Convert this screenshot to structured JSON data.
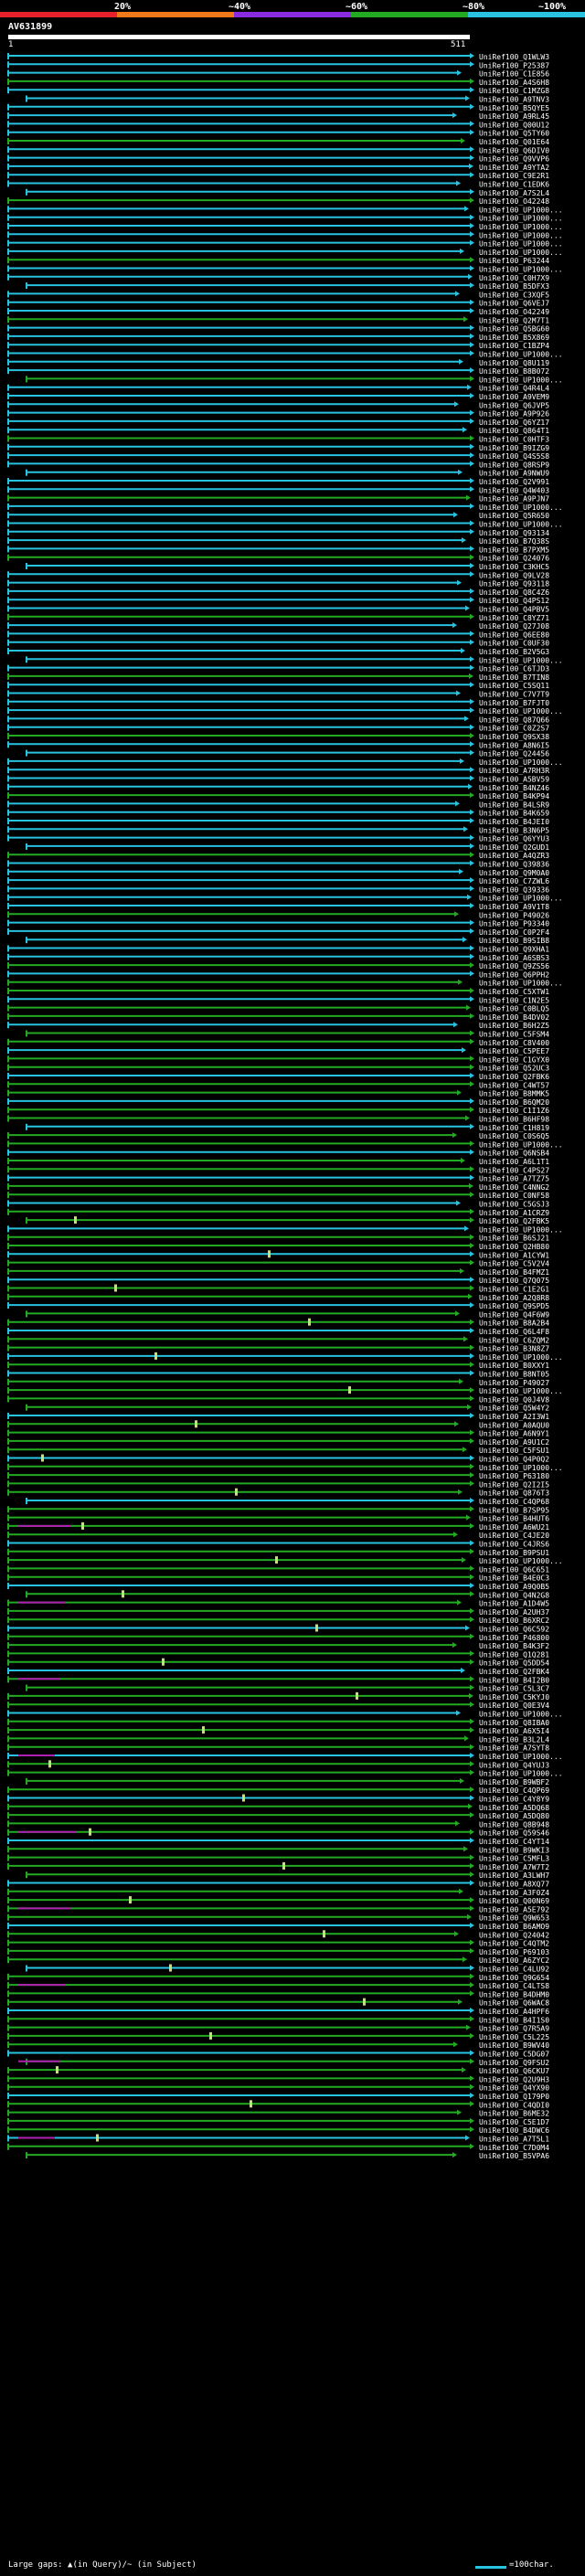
{
  "scale": {
    "labels": [
      "20%",
      "~40%",
      "~60%",
      "~80%",
      "~100%"
    ],
    "colors": [
      "#e8202a",
      "#f07a1a",
      "#8a2be2",
      "#22aa22",
      "#27c3e0"
    ]
  },
  "query": {
    "name": "AV631899",
    "start": "1",
    "end": "511"
  },
  "hits": [
    "UniRef100_Q1WLW3",
    "UniRef100_P25387",
    "UniRef100_C1E856",
    "UniRef100_A4S6H8",
    "UniRef100_C1MZG8",
    "UniRef100_A9TNV3",
    "UniRef100_B5QYE5",
    "UniRef100_A9RL45",
    "UniRef100_Q00U12",
    "UniRef100_Q5TY60",
    "UniRef100_Q01E64",
    "UniRef100_Q6DIV0",
    "UniRef100_Q9VVP6",
    "UniRef100_A9YTA2",
    "UniRef100_C9E2R1",
    "UniRef100_C1EDK6",
    "UniRef100_A7S2L4",
    "UniRef100_O42248",
    "UniRef100_UP1000...",
    "UniRef100_UP1000...",
    "UniRef100_UP1000...",
    "UniRef100_UP1000...",
    "UniRef100_UP1000...",
    "UniRef100_UP1000...",
    "UniRef100_P63244",
    "UniRef100_UP1000...",
    "UniRef100_C0H7X9",
    "UniRef100_B5DFX3",
    "UniRef100_C3XQF5",
    "UniRef100_Q6VEJ7",
    "UniRef100_O42249",
    "UniRef100_Q2M7T1",
    "UniRef100_Q5BG60",
    "UniRef100_B5X869",
    "UniRef100_C1BZP4",
    "UniRef100_UP1000...",
    "UniRef100_Q8U119",
    "UniRef100_B8B072",
    "UniRef100_UP1000...",
    "UniRef100_Q4R4L4",
    "UniRef100_A9VEM9",
    "UniRef100_Q6JVP5",
    "UniRef100_A9P926",
    "UniRef100_Q6YZ17",
    "UniRef100_Q864T1",
    "UniRef100_C0HTF3",
    "UniRef100_B9IZG9",
    "UniRef100_Q4S5S8",
    "UniRef100_Q8RSP9",
    "UniRef100_A9NWU9",
    "UniRef100_Q2V991",
    "UniRef100_Q4W403",
    "UniRef100_A9PJN7",
    "UniRef100_UP1000...",
    "UniRef100_Q5R650",
    "UniRef100_UP1000...",
    "UniRef100_Q93134",
    "UniRef100_B7Q38S",
    "UniRef100_B7PXM5",
    "UniRef100_Q24076",
    "UniRef100_C3KHC5",
    "UniRef100_Q9LV28",
    "UniRef100_Q93118",
    "UniRef100_Q8C4Z6",
    "UniRef100_Q4PS12",
    "UniRef100_Q4PBV5",
    "UniRef100_C8YZ71",
    "UniRef100_Q27J08",
    "UniRef100_Q6EE80",
    "UniRef100_C0UF30",
    "UniRef100_B2V5G3",
    "UniRef100_UP1000...",
    "UniRef100_C6TJD3",
    "UniRef100_B7TIN8",
    "UniRef100_C5SQ11",
    "UniRef100_C7V7T9",
    "UniRef100_B7FJT0",
    "UniRef100_UP1000...",
    "UniRef100_Q87Q66",
    "UniRef100_C0Z2S7",
    "UniRef100_Q9SX38",
    "UniRef100_A8N6I5",
    "UniRef100_Q24456",
    "UniRef100_UP1000...",
    "UniRef100_A7RH3R",
    "UniRef100_A5BV59",
    "UniRef100_B4NZ46",
    "UniRef100_B4KP94",
    "UniRef100_B4LSR9",
    "UniRef100_B4K659",
    "UniRef100_B4JEI0",
    "UniRef100_B3N6P5",
    "UniRef100_Q6YYU3",
    "UniRef100_Q2GUD1",
    "UniRef100_A4QZR3",
    "UniRef100_Q39836",
    "UniRef100_Q9M0A0",
    "UniRef100_C7ZWL6",
    "UniRef100_Q39336",
    "UniRef100_UP1000...",
    "UniRef100_A9V1T8",
    "UniRef100_P49026",
    "UniRef100_P93340",
    "UniRef100_C0P2F4",
    "UniRef100_B9SIB8",
    "UniRef100_Q9XHA1",
    "UniRef100_A6SBS3",
    "UniRef100_Q9ZS56",
    "UniRef100_Q6PPH2",
    "UniRef100_UP1000...",
    "UniRef100_C5XTW1",
    "UniRef100_C1N2E5",
    "UniRef100_C0BLQ5",
    "UniRef100_B4DV02",
    "UniRef100_B6H2Z5",
    "UniRef100_C5FSM4",
    "UniRef100_C8V400",
    "UniRef100_C5PEE7",
    "UniRef100_C1GYX0",
    "UniRef100_Q52UC3",
    "UniRef100_Q2FBK6",
    "UniRef100_C4WT57",
    "UniRef100_B8MMK5",
    "UniRef100_B6QM20",
    "UniRef100_C1I1Z6",
    "UniRef100_B6HF98",
    "UniRef100_C1H819",
    "UniRef100_C0S6Q5",
    "UniRef100_UP1000...",
    "UniRef100_Q6NSB4",
    "UniRef100_A6L1T1",
    "UniRef100_C4PS27",
    "UniRef100_A7TZ75",
    "UniRef100_C4NNG2",
    "UniRef100_C0NF58",
    "UniRef100_C5GSJ3",
    "UniRef100_A1CRZ9",
    "UniRef100_Q2FBK5",
    "UniRef100_UP1000...",
    "UniRef100_B6SJ21",
    "UniRef100_Q2HB80",
    "UniRef100_A1CYW1",
    "UniRef100_C5V2V4",
    "UniRef100_B4FMZ1",
    "UniRef100_Q7Q075",
    "UniRef100_C1E2G1",
    "UniRef100_A2Q8R8",
    "UniRef100_Q9SPD5",
    "UniRef100_Q4F6W9",
    "UniRef100_B8A2B4",
    "UniRef100_Q6L4F8",
    "UniRef100_C6ZQM2",
    "UniRef100_B3N8Z7",
    "UniRef100_UP1000...",
    "UniRef100_B0XXY1",
    "UniRef100_B8NT05",
    "UniRef100_P49027",
    "UniRef100_UP1000...",
    "UniRef100_Q0J4V8",
    "UniRef100_Q5W4Y2",
    "UniRef100_A2I3W1",
    "UniRef100_A0AQU0",
    "UniRef100_A6N9Y1",
    "UniRef100_A9U1C2",
    "UniRef100_C5FSU1",
    "UniRef100_Q4P0Q2",
    "UniRef100_UP1000...",
    "UniRef100_P63180",
    "UniRef100_Q2I2I5",
    "UniRef100_Q876T3",
    "UniRef100_C4QP68",
    "UniRef100_B7SP95",
    "UniRef100_B4HUT6",
    "UniRef100_A6WU21",
    "UniRef100_C4JE20",
    "UniRef100_C4JRS6",
    "UniRef100_B9PSU1",
    "UniRef100_UP1000...",
    "UniRef100_Q6C651",
    "UniRef100_B4E0C3",
    "UniRef100_A9Q0B5",
    "UniRef100_Q4N2G8",
    "UniRef100_A1D4W5",
    "UniRef100_A2UH37",
    "UniRef100_B6XRC2",
    "UniRef100_Q6C592",
    "UniRef100_P46800",
    "UniRef100_B4K3F2",
    "UniRef100_Q1Q281",
    "UniRef100_Q5DD54",
    "UniRef100_Q2FBK4",
    "UniRef100_B4I2B0",
    "UniRef100_C5L3C7",
    "UniRef100_C5KYJ0",
    "UniRef100_Q0E3V4",
    "UniRef100_UP1000...",
    "UniRef100_Q8IBA0",
    "UniRef100_A6X5I4",
    "UniRef100_B3L2L4",
    "UniRef100_A7SYT8",
    "UniRef100_UP1000...",
    "UniRef100_Q4YUJ3",
    "UniRef100_UP1000...",
    "UniRef100_B9WBF2",
    "UniRef100_C4QP69",
    "UniRef100_C4Y8Y9",
    "UniRef100_A5DQ68",
    "UniRef100_A5DQ80",
    "UniRef100_Q8B948",
    "UniRef100_Q59S46",
    "UniRef100_C4YT14",
    "UniRef100_B9WKI3",
    "UniRef100_C5MFL3",
    "UniRef100_A7W7T2",
    "UniRef100_A3LWH7",
    "UniRef100_A8XQ77",
    "UniRef100_A3F0Z4",
    "UniRef100_Q00N69",
    "UniRef100_A5E792",
    "UniRef100_Q9W653",
    "UniRef100_B6AMO9",
    "UniRef100_Q24042",
    "UniRef100_C4QTM2",
    "UniRef100_P69103",
    "UniRef100_A6ZYC2",
    "UniRef100_C4LU92",
    "UniRef100_Q9G654",
    "UniRef100_C4LTS8",
    "UniRef100_B4DHM0",
    "UniRef100_Q6WAC8",
    "UniRef100_A4HPF6",
    "UniRef100_B4I1S0",
    "UniRef100_Q7R5A9",
    "UniRef100_C5L225",
    "UniRef100_B9WV40",
    "UniRef100_C5DG07",
    "UniRef100_Q9FSU2",
    "UniRef100_Q6CKU7",
    "UniRef100_Q2U9H3",
    "UniRef100_Q4YX90",
    "UniRef100_Q179P0",
    "UniRef100_C4QDI0",
    "UniRef100_B6ME32",
    "UniRef100_C5E1D7",
    "UniRef100_B4DWC6",
    "UniRef100_A7T5L1",
    "UniRef100_C7D0M4",
    "UniRef100_B5VPA6"
  ],
  "footer": {
    "legend_text": "Large gaps: ▲(in Query)/~ (in Subject)",
    "scale_text": "=100char."
  }
}
